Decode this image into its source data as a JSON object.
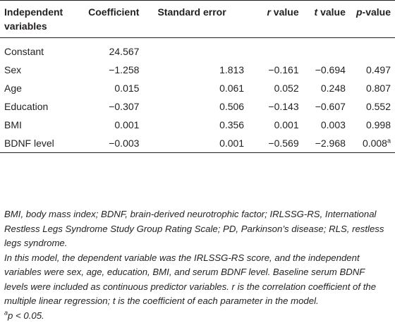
{
  "table": {
    "headers": {
      "var_line1": "Independent",
      "var_line2": "variables",
      "coefficient": "Coefficient",
      "standard_error": "Standard error",
      "r_letter": "r",
      "r_suffix": " value",
      "t_letter": "t",
      "t_suffix": " value",
      "p_letter": "p",
      "p_suffix": "-value"
    },
    "rows": [
      {
        "variable": "Constant",
        "coefficient": "24.567",
        "se": "",
        "r": "",
        "t": "",
        "p": "",
        "p_sup": ""
      },
      {
        "variable": "Sex",
        "coefficient": "−1.258",
        "se": "1.813",
        "r": "−0.161",
        "t": "−0.694",
        "p": "0.497",
        "p_sup": ""
      },
      {
        "variable": "Age",
        "coefficient": "0.015",
        "se": "0.061",
        "r": "0.052",
        "t": "0.248",
        "p": "0.807",
        "p_sup": ""
      },
      {
        "variable": "Education",
        "coefficient": "−0.307",
        "se": "0.506",
        "r": "−0.143",
        "t": "−0.607",
        "p": "0.552",
        "p_sup": ""
      },
      {
        "variable": "BMI",
        "coefficient": "0.001",
        "se": "0.356",
        "r": "0.001",
        "t": "0.003",
        "p": "0.998",
        "p_sup": ""
      },
      {
        "variable": "BDNF level",
        "coefficient": "−0.003",
        "se": "0.001",
        "r": "−0.569",
        "t": "−2.968",
        "p": "0.008",
        "p_sup": "a"
      }
    ]
  },
  "footnotes": {
    "abbreviations": "BMI, body mass index; BDNF, brain-derived neurotrophic factor; IRLSSG-RS, International Restless Legs Syndrome Study Group Rating Scale; PD, Parkinson’s disease; RLS, restless legs syndrome.",
    "model_note": "In this model, the dependent variable was the IRLSSG-RS score, and the independent variables were sex, age, education, BMI, and serum BDNF level. Baseline serum BDNF levels were included as continuous predictor variables. r is the correlation coefficient of the multiple linear regression; t is the coefficient of each parameter in the model.",
    "sig_sup": "a",
    "sig_text": "p < 0.05."
  }
}
